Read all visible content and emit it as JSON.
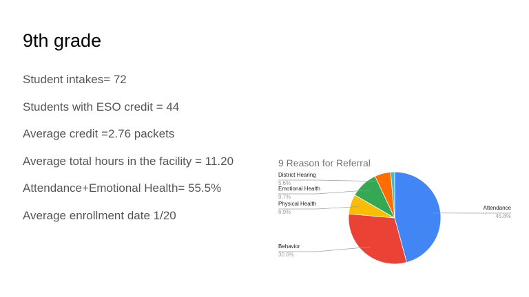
{
  "slide": {
    "title": "9th grade",
    "stats": [
      "Student intakes= 72",
      "Students with ESO credit = 44",
      "Average credit =2.76 packets",
      "Average total hours in the facility = 11.20",
      "Attendance+Emotional Health= 55.5%",
      "Average enrollment date 1/20"
    ]
  },
  "chart_data": {
    "type": "pie",
    "title": "9 Reason for Referral",
    "start_angle_deg": 0,
    "direction": "clockwise",
    "slices": [
      {
        "label": "Attendance",
        "percent_label": "45.8%",
        "value": 45.8,
        "color": "#4285f4"
      },
      {
        "label": "Behavior",
        "percent_label": "30.6%",
        "value": 30.6,
        "color": "#ea4335"
      },
      {
        "label": "Physical Health",
        "percent_label": "6.9%",
        "value": 6.9,
        "color": "#fbbc04"
      },
      {
        "label": "Emotional Health",
        "percent_label": "9.7%",
        "value": 9.7,
        "color": "#34a853"
      },
      {
        "label": "District Hearing",
        "percent_label": "5.6%",
        "value": 5.6,
        "color": "#ff6d01"
      },
      {
        "label": "",
        "percent_label": "",
        "value": 1.4,
        "color": "#46bdc6"
      }
    ]
  }
}
